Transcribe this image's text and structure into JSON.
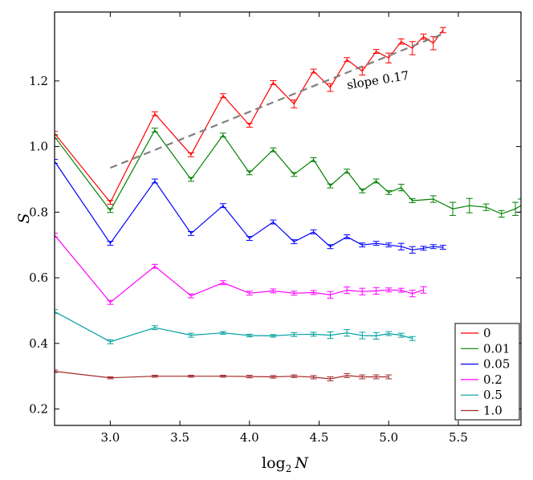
{
  "chart_data": {
    "type": "line",
    "xlabel": "log",
    "xlabel_sub": "2",
    "xlabel_var": "N",
    "ylabel": "S",
    "xlim": [
      2.6,
      5.95
    ],
    "ylim": [
      0.15,
      1.41
    ],
    "xticks": [
      "3.0",
      "3.5",
      "4.0",
      "4.5",
      "5.0",
      "5.5"
    ],
    "xtick_values": [
      3.0,
      3.5,
      4.0,
      4.5,
      5.0,
      5.5
    ],
    "yticks": [
      "0.2",
      "0.4",
      "0.6",
      "0.8",
      "1.0",
      "1.2"
    ],
    "ytick_values": [
      0.2,
      0.4,
      0.6,
      0.8,
      1.0,
      1.2
    ],
    "grid": false,
    "legend_position": "bottom-right",
    "annotation": {
      "text": "slope 0.17",
      "x": 4.68,
      "y": 1.18
    },
    "reference_line": {
      "style": "dashed",
      "color": "#808080",
      "x": [
        3.0,
        5.4
      ],
      "y": [
        0.935,
        1.345
      ]
    },
    "series": [
      {
        "name": "0",
        "color": "#ff0000",
        "x": [
          2.6,
          3.0,
          3.32,
          3.58,
          3.81,
          4.0,
          4.17,
          4.32,
          4.46,
          4.58,
          4.7,
          4.81,
          4.91,
          5.0,
          5.09,
          5.17,
          5.25,
          5.32,
          5.39
        ],
        "y": [
          1.04,
          0.83,
          1.1,
          0.975,
          1.155,
          1.065,
          1.195,
          1.13,
          1.23,
          1.18,
          1.265,
          1.23,
          1.29,
          1.27,
          1.32,
          1.3,
          1.335,
          1.315,
          1.355
        ],
        "err": [
          0.006,
          0.006,
          0.006,
          0.006,
          0.006,
          0.006,
          0.006,
          0.012,
          0.006,
          0.012,
          0.006,
          0.012,
          0.006,
          0.015,
          0.008,
          0.02,
          0.008,
          0.02,
          0.008
        ]
      },
      {
        "name": "0.01",
        "color": "#008000",
        "x": [
          2.6,
          3.0,
          3.32,
          3.58,
          3.81,
          4.0,
          4.17,
          4.32,
          4.46,
          4.58,
          4.7,
          4.81,
          4.91,
          5.0,
          5.09,
          5.17,
          5.32,
          5.46,
          5.58,
          5.7,
          5.81,
          5.91,
          5.95
        ],
        "y": [
          1.03,
          0.805,
          1.05,
          0.9,
          1.035,
          0.92,
          0.99,
          0.915,
          0.96,
          0.88,
          0.925,
          0.865,
          0.895,
          0.86,
          0.875,
          0.835,
          0.84,
          0.81,
          0.82,
          0.815,
          0.795,
          0.81,
          0.82
        ],
        "err": [
          0.006,
          0.006,
          0.006,
          0.006,
          0.006,
          0.006,
          0.006,
          0.006,
          0.006,
          0.006,
          0.006,
          0.006,
          0.006,
          0.006,
          0.01,
          0.006,
          0.01,
          0.02,
          0.022,
          0.01,
          0.01,
          0.02,
          0.02
        ]
      },
      {
        "name": "0.05",
        "color": "#0000ff",
        "x": [
          2.6,
          3.0,
          3.32,
          3.58,
          3.81,
          4.0,
          4.17,
          4.32,
          4.46,
          4.58,
          4.7,
          4.81,
          4.91,
          5.0,
          5.09,
          5.17,
          5.25,
          5.32,
          5.39
        ],
        "y": [
          0.955,
          0.705,
          0.895,
          0.735,
          0.82,
          0.72,
          0.77,
          0.71,
          0.74,
          0.695,
          0.725,
          0.7,
          0.705,
          0.7,
          0.695,
          0.685,
          0.69,
          0.695,
          0.693
        ],
        "err": [
          0.006,
          0.006,
          0.006,
          0.006,
          0.006,
          0.006,
          0.006,
          0.006,
          0.006,
          0.006,
          0.006,
          0.006,
          0.006,
          0.006,
          0.01,
          0.01,
          0.006,
          0.006,
          0.006
        ]
      },
      {
        "name": "0.2",
        "color": "#ff00ff",
        "x": [
          2.6,
          3.0,
          3.32,
          3.58,
          3.81,
          4.0,
          4.17,
          4.32,
          4.46,
          4.58,
          4.7,
          4.81,
          4.91,
          5.0,
          5.09,
          5.17,
          5.25
        ],
        "y": [
          0.73,
          0.525,
          0.635,
          0.545,
          0.585,
          0.553,
          0.56,
          0.553,
          0.555,
          0.548,
          0.562,
          0.558,
          0.56,
          0.563,
          0.562,
          0.552,
          0.563
        ],
        "err": [
          0.006,
          0.006,
          0.006,
          0.006,
          0.006,
          0.006,
          0.006,
          0.006,
          0.006,
          0.01,
          0.01,
          0.01,
          0.01,
          0.006,
          0.006,
          0.01,
          0.01
        ]
      },
      {
        "name": "0.5",
        "color": "#00a0a0",
        "x": [
          2.6,
          3.0,
          3.32,
          3.58,
          3.81,
          4.0,
          4.17,
          4.32,
          4.46,
          4.58,
          4.7,
          4.81,
          4.91,
          5.0,
          5.09,
          5.17
        ],
        "y": [
          0.497,
          0.405,
          0.448,
          0.425,
          0.432,
          0.424,
          0.423,
          0.427,
          0.428,
          0.425,
          0.432,
          0.424,
          0.423,
          0.43,
          0.425,
          0.415
        ],
        "err": [
          0.006,
          0.006,
          0.006,
          0.006,
          0.004,
          0.004,
          0.004,
          0.006,
          0.006,
          0.01,
          0.01,
          0.01,
          0.01,
          0.006,
          0.006,
          0.006
        ]
      },
      {
        "name": "1.0",
        "color": "#a52a2a",
        "x": [
          2.6,
          3.0,
          3.32,
          3.58,
          3.81,
          4.0,
          4.17,
          4.32,
          4.46,
          4.58,
          4.7,
          4.81,
          4.91,
          5.0
        ],
        "y": [
          0.315,
          0.295,
          0.3,
          0.3,
          0.3,
          0.299,
          0.298,
          0.3,
          0.297,
          0.292,
          0.302,
          0.298,
          0.298,
          0.298
        ],
        "err": [
          0.004,
          0.003,
          0.003,
          0.003,
          0.003,
          0.004,
          0.004,
          0.004,
          0.005,
          0.006,
          0.006,
          0.006,
          0.006,
          0.006
        ]
      }
    ]
  }
}
